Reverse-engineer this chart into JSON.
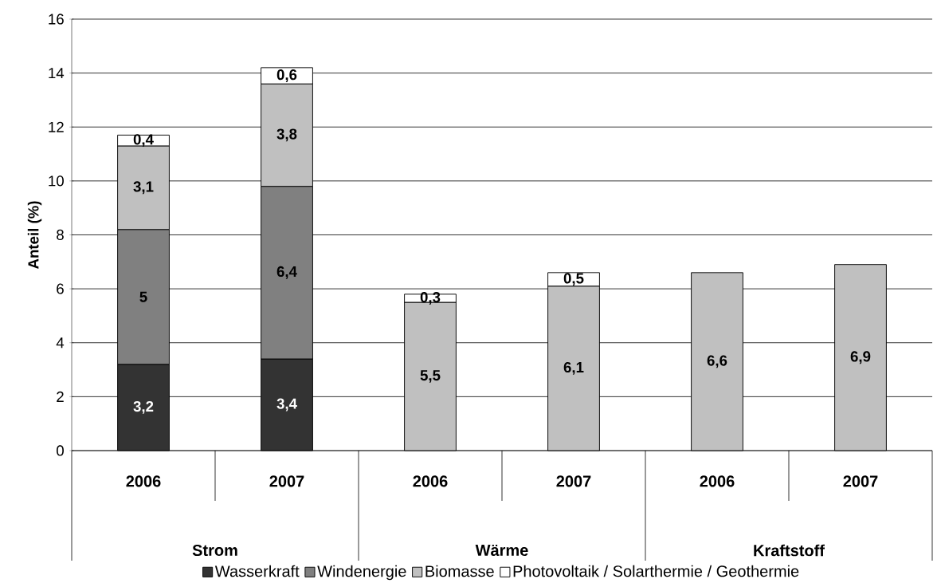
{
  "chart_data": {
    "type": "bar",
    "stacked": true,
    "ylabel": "Anteil (%)",
    "categories": [
      "2006",
      "2007",
      "2006",
      "2007",
      "2006",
      "2007"
    ],
    "annotations": [
      "Strom",
      "Wärme",
      "Kraftstoff"
    ],
    "series": [
      {
        "name": "Wasserkraft",
        "color": "#333333",
        "values": [
          3.2,
          3.4,
          null,
          null,
          null,
          null
        ],
        "value_labels": [
          "3,2",
          "3,4",
          null,
          null,
          null,
          null
        ]
      },
      {
        "name": "Windenergie",
        "color": "#808080",
        "values": [
          5,
          6.4,
          null,
          null,
          null,
          null
        ],
        "value_labels": [
          "5",
          "6,4",
          null,
          null,
          null,
          null
        ]
      },
      {
        "name": "Biomasse",
        "color": "#c0c0c0",
        "values": [
          3.1,
          3.8,
          5.5,
          6.1,
          6.6,
          6.9
        ],
        "value_labels": [
          "3,1",
          "3,8",
          "5,5",
          "6,1",
          "6,6",
          "6,9"
        ]
      },
      {
        "name": "Photovoltaik / Solarthermie / Geothermie",
        "color": "#ffffff",
        "values": [
          0.4,
          0.6,
          0.3,
          0.5,
          null,
          null
        ],
        "value_labels": [
          "0,4",
          "0,6",
          "0,3",
          "0,5",
          null,
          null
        ]
      }
    ],
    "ylim": [
      0,
      16
    ],
    "yticks": [
      0,
      2,
      4,
      6,
      8,
      10,
      12,
      14,
      16
    ],
    "grid": "y",
    "legend": "bottom"
  }
}
